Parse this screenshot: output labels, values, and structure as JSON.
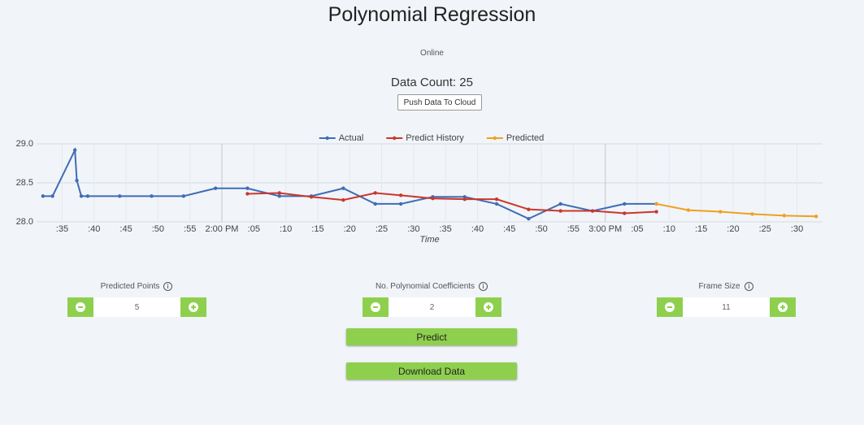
{
  "header": {
    "title": "Polynomial Regression",
    "status": "Online",
    "data_count": "Data Count: 25",
    "push_button": "Push Data To Cloud"
  },
  "chart_data": {
    "type": "line",
    "xlabel": "Time",
    "legend": "top",
    "grid": true,
    "xlim": [
      31,
      154
    ],
    "ylim": [
      28,
      29
    ],
    "yticks": [
      {
        "value": 28,
        "label": "28.0"
      },
      28.5,
      {
        "value": 29,
        "label": "29.0"
      }
    ],
    "xticks": [
      {
        "value": 35,
        "label": ":35"
      },
      {
        "value": 40,
        "label": ":40"
      },
      {
        "value": 45,
        "label": ":45"
      },
      {
        "value": 50,
        "label": ":50"
      },
      {
        "value": 55,
        "label": ":55"
      },
      {
        "value": 60,
        "label": "2:00 PM"
      },
      {
        "value": 65,
        "label": ":05"
      },
      {
        "value": 70,
        "label": ":10"
      },
      {
        "value": 75,
        "label": ":15"
      },
      {
        "value": 80,
        "label": ":20"
      },
      {
        "value": 85,
        "label": ":25"
      },
      {
        "value": 90,
        "label": ":30"
      },
      {
        "value": 95,
        "label": ":35"
      },
      {
        "value": 100,
        "label": ":40"
      },
      {
        "value": 105,
        "label": ":45"
      },
      {
        "value": 110,
        "label": ":50"
      },
      {
        "value": 115,
        "label": ":55"
      },
      {
        "value": 120,
        "label": "3:00 PM"
      },
      {
        "value": 125,
        "label": ":05"
      },
      {
        "value": 130,
        "label": ":10"
      },
      {
        "value": 135,
        "label": ":15"
      },
      {
        "value": 140,
        "label": ":20"
      },
      {
        "value": 145,
        "label": ":25"
      },
      {
        "value": 150,
        "label": ":30"
      }
    ],
    "series": [
      {
        "name": "Actual",
        "color": "#3f6db5",
        "x": [
          32,
          33.5,
          37,
          37.3,
          38,
          39,
          44,
          49,
          54,
          59,
          64,
          69,
          74,
          79,
          84,
          88,
          93,
          98,
          103,
          108,
          113,
          118,
          123,
          128
        ],
        "values": [
          28.33,
          28.33,
          28.92,
          28.53,
          28.33,
          28.33,
          28.33,
          28.33,
          28.33,
          28.43,
          28.43,
          28.33,
          28.33,
          28.43,
          28.23,
          28.23,
          28.32,
          28.32,
          28.23,
          28.04,
          28.23,
          28.14,
          28.23,
          28.23
        ]
      },
      {
        "name": "Predict History",
        "color": "#c9372c",
        "x": [
          64,
          69,
          74,
          79,
          84,
          88,
          93,
          98,
          103,
          108,
          113,
          118,
          123,
          128
        ],
        "values": [
          28.36,
          28.37,
          28.32,
          28.28,
          28.37,
          28.34,
          28.3,
          28.29,
          28.29,
          28.16,
          28.14,
          28.14,
          28.11,
          28.13
        ]
      },
      {
        "name": "Predicted",
        "color": "#f0a020",
        "x": [
          128,
          133,
          138,
          143,
          148,
          153
        ],
        "values": [
          28.23,
          28.15,
          28.13,
          28.1,
          28.08,
          28.07
        ]
      }
    ]
  },
  "controls": [
    {
      "label": "Predicted Points",
      "value": 5
    },
    {
      "label": "No. Polynomial Coefficients",
      "value": 2
    },
    {
      "label": "Frame Size",
      "value": 11
    }
  ],
  "buttons": {
    "predict": "Predict",
    "download": "Download Data"
  }
}
